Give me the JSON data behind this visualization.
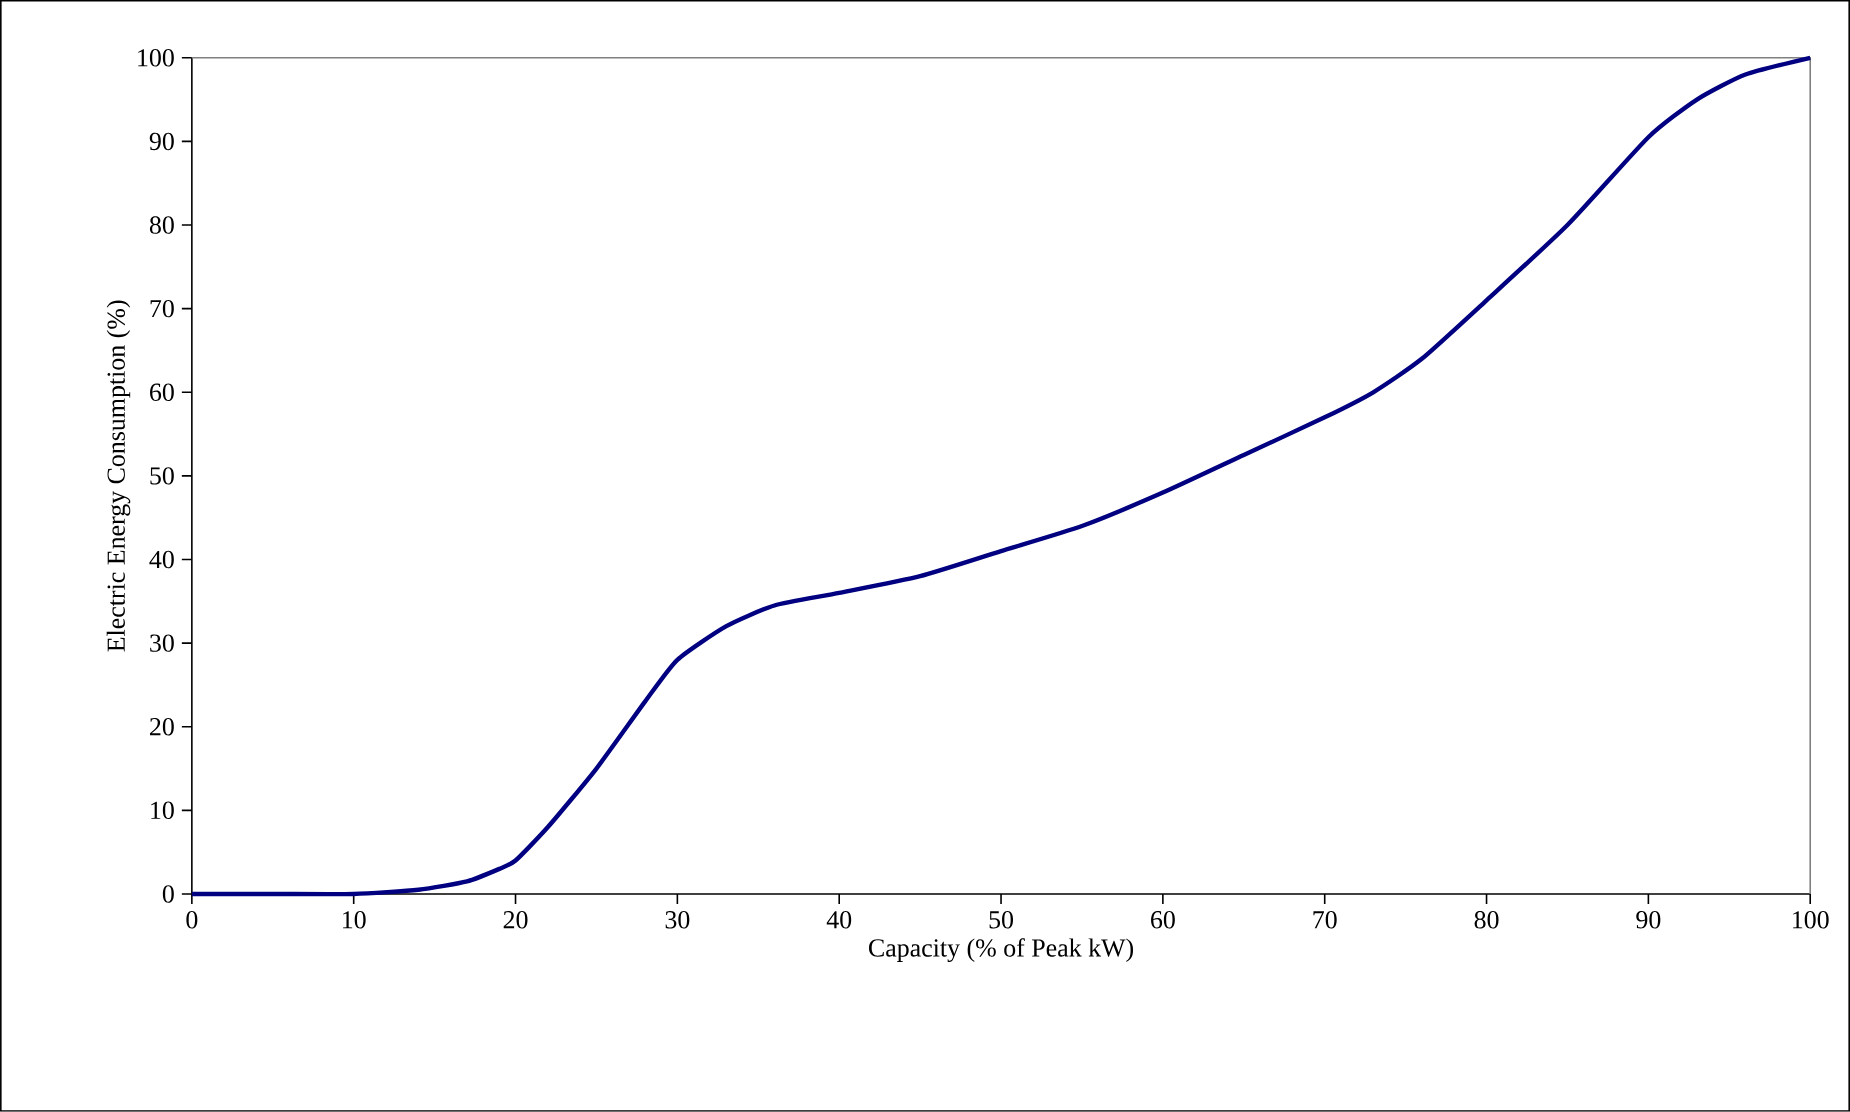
{
  "chart_data": {
    "type": "line",
    "xlabel": "Capacity (% of Peak kW)",
    "ylabel": "Electric Energy Consumption (%)",
    "x": [
      0,
      5,
      10,
      14,
      17,
      19,
      20,
      22,
      25,
      28,
      30,
      33,
      36,
      40,
      45,
      50,
      55,
      60,
      65,
      70,
      73,
      76,
      80,
      85,
      90,
      93,
      96,
      100
    ],
    "series": [
      {
        "color": "#000080",
        "values": [
          0,
          0,
          0,
          0.5,
          1.5,
          3,
          4,
          8,
          15,
          23,
          28,
          32,
          34.5,
          36,
          38,
          41,
          44,
          48,
          52.5,
          57,
          60,
          64,
          71,
          80,
          90.5,
          95,
          98,
          100
        ]
      }
    ],
    "xlim": [
      0,
      100
    ],
    "ylim": [
      0,
      100
    ],
    "xticks": [
      0,
      10,
      20,
      30,
      40,
      50,
      60,
      70,
      80,
      90,
      100
    ],
    "yticks": [
      0,
      10,
      20,
      30,
      40,
      50,
      60,
      70,
      80,
      90,
      100
    ]
  }
}
